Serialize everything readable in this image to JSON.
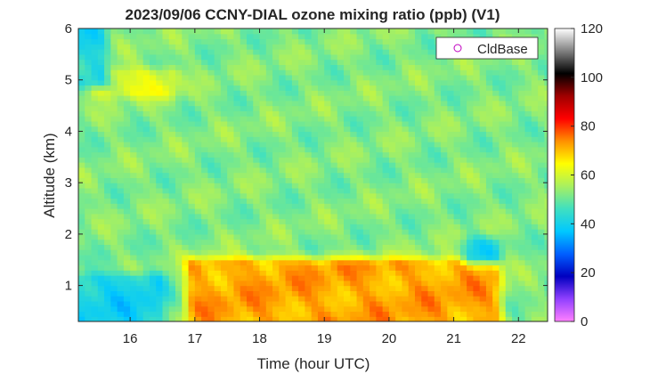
{
  "chart_data": {
    "type": "heatmap",
    "title": "2023/09/06 CCNY-DIAL ozone mixing ratio (ppb) (V1)",
    "xlabel": "Time (hour UTC)",
    "ylabel": "Altitude (km)",
    "xlim": [
      15.2,
      22.45
    ],
    "ylim": [
      0.3,
      6
    ],
    "x_ticks": [
      "16",
      "17",
      "18",
      "19",
      "20",
      "21",
      "22"
    ],
    "y_ticks": [
      "1",
      "2",
      "3",
      "4",
      "5",
      "6"
    ],
    "colorbar": {
      "range": [
        0,
        120
      ],
      "ticks": [
        "0",
        "20",
        "40",
        "60",
        "80",
        "100",
        "120"
      ],
      "colormap": [
        "#ff80ff",
        "#9040ff",
        "#0000c0",
        "#0060ff",
        "#00c8ff",
        "#40e0c0",
        "#a8f060",
        "#ffff00",
        "#ff9000",
        "#ff0000",
        "#a00000",
        "#000000",
        "#808080",
        "#ffffff"
      ]
    },
    "legend": {
      "entries": [
        "CldBase"
      ],
      "placement": "top-right",
      "marker_color": "#c000c0"
    },
    "grid": false,
    "data_summary": {
      "time_step_hours": 0.1,
      "altitude_step_km": 0.1,
      "regions": [
        {
          "feature": "boundary-layer ozone maximum",
          "time_range": [
            17.6,
            18.4
          ],
          "altitude_range": [
            0.5,
            1.3
          ],
          "ozone_ppb": 82
        },
        {
          "feature": "elevated boundary layer ozone",
          "time_range": [
            17.0,
            21.6
          ],
          "altitude_range": [
            0.3,
            1.4
          ],
          "ozone_ppb": 72
        },
        {
          "feature": "low ozone near surface (early)",
          "time_range": [
            15.2,
            16.4
          ],
          "altitude_range": [
            0.3,
            1.1
          ],
          "ozone_ppb": 40
        },
        {
          "feature": "low ozone pocket",
          "time_range": [
            21.3,
            21.6
          ],
          "altitude_range": [
            1.6,
            1.8
          ],
          "ozone_ppb": 42
        },
        {
          "feature": "enhanced layer aloft",
          "time_range": [
            15.5,
            16.6
          ],
          "altitude_range": [
            4.8,
            5.1
          ],
          "ozone_ppb": 62
        },
        {
          "feature": "low ozone near top",
          "time_range": [
            15.2,
            15.5
          ],
          "altitude_range": [
            5.0,
            6.0
          ],
          "ozone_ppb": 42
        },
        {
          "feature": "free troposphere background",
          "time_range": [
            15.2,
            22.45
          ],
          "altitude_range": [
            1.5,
            6.0
          ],
          "ozone_ppb": 52
        }
      ]
    }
  }
}
